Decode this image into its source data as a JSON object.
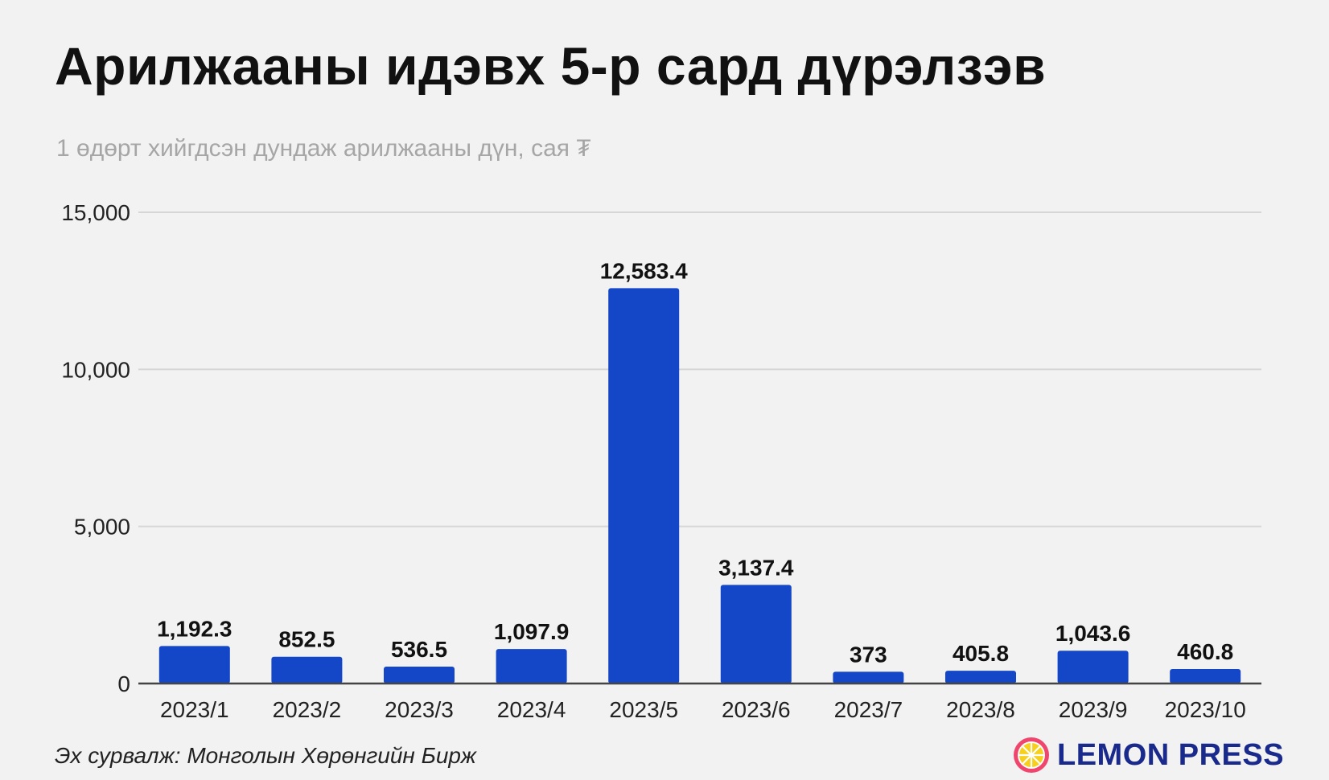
{
  "colors": {
    "bar": "#1446c8",
    "grid": "#d6d6d6",
    "axis": "#444444",
    "brand": "#1a2a8c",
    "logo_pink": "#f0466e",
    "logo_yellow": "#f7cf1d"
  },
  "icons": {
    "brand_logo": "lemon-slice-icon"
  },
  "brand": {
    "name": "LEMON PRESS"
  },
  "source": "Эх сурвалж: Монголын Хөрөнгийн Бирж",
  "chart_data": {
    "type": "bar",
    "title": "Арилжааны идэвх 5-р сард дүрэлзэв",
    "subtitle": "1 өдөрт хийгдсэн дундаж арилжааны дүн, сая ₮",
    "categories": [
      "2023/1",
      "2023/2",
      "2023/3",
      "2023/4",
      "2023/5",
      "2023/6",
      "2023/7",
      "2023/8",
      "2023/9",
      "2023/10"
    ],
    "values": [
      1192.3,
      852.5,
      536.5,
      1097.9,
      12583.4,
      3137.4,
      373,
      405.8,
      1043.6,
      460.8
    ],
    "data_labels": [
      "1,192.3",
      "852.5",
      "536.5",
      "1,097.9",
      "12,583.4",
      "3,137.4",
      "373",
      "405.8",
      "1,043.6",
      "460.8"
    ],
    "yticks": [
      0,
      5000,
      10000,
      15000
    ],
    "ytick_labels": [
      "0",
      "5,000",
      "10,000",
      "15,000"
    ],
    "ylim": [
      0,
      15000
    ],
    "grid": true,
    "legend": false
  }
}
